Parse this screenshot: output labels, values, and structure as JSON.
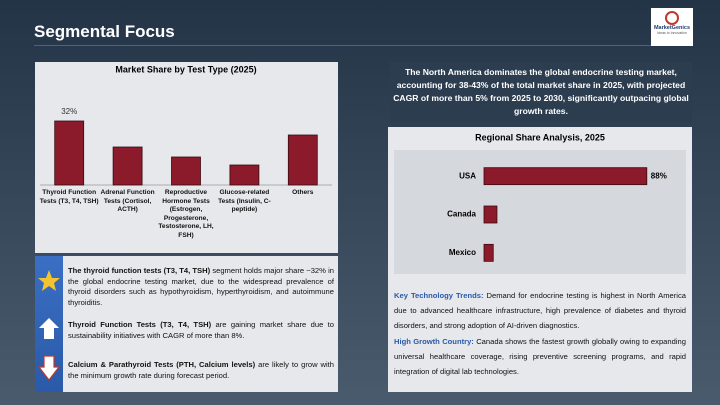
{
  "header": {
    "title": "Segmental Focus",
    "logo": "MarketGenics",
    "logo_tagline": "Ideas to Innovation"
  },
  "chart_data": [
    {
      "type": "bar",
      "title": "Market Share by Test Type (2025)",
      "categories": [
        "Thyroid Function Tests (T3, T4, TSH)",
        "Adrenal Function Tests (Cortisol, ACTH)",
        "Reproductive Hormone Tests (Estrogen, Progesterone, Testosterone, LH, FSH)",
        "Glucose-related Tests (Insulin, C-peptide)",
        "Others"
      ],
      "values": [
        32,
        19,
        14,
        10,
        25
      ],
      "value_labels": [
        "32%",
        null,
        null,
        null,
        null
      ],
      "color": "#8b1a2b",
      "ylim": [
        0,
        35
      ]
    },
    {
      "type": "hbar",
      "title": "Regional Share Analysis, 2025",
      "categories": [
        "USA",
        "Canada",
        "Mexico"
      ],
      "values": [
        88,
        7,
        5
      ],
      "value_labels": [
        "88%",
        null,
        null
      ],
      "color": "#8b1a2b",
      "xlim": [
        0,
        100
      ]
    }
  ],
  "highlight": "The North America dominates the global endocrine testing market, accounting for 38-43% of the total market share in 2025, with projected CAGR of more than 5% from 2025 to 2030, significantly outpacing global growth rates.",
  "bullets": [
    {
      "bold": "The thyroid function tests (T3, T4, TSH)",
      "text": " segment holds major share ~32% in the global endocrine testing market, due to the widespread prevalence of thyroid disorders such as hypothyroidism, hyperthyroidism, and autoimmune thyroiditis."
    },
    {
      "bold": "Thyroid Function Tests (T3, T4, TSH)",
      "text": " are gaining market share due to sustainability initiatives with CAGR of more than 8%."
    },
    {
      "bold": "Calcium & Parathyroid Tests (PTH, Calcium levels)",
      "text": " are likely to grow with the minimum growth rate during forecast period."
    }
  ],
  "notes": [
    {
      "label": "Key Technology Trends:",
      "text": " Demand for endocrine testing is highest in North America due to advanced healthcare infrastructure, high prevalence of diabetes and thyroid disorders, and strong adoption of AI-driven diagnostics."
    },
    {
      "label": "High Growth Country:",
      "text": " Canada shows the fastest growth globally owing to expanding universal healthcare coverage, rising preventive screening programs, and rapid integration of digital lab technologies."
    }
  ]
}
